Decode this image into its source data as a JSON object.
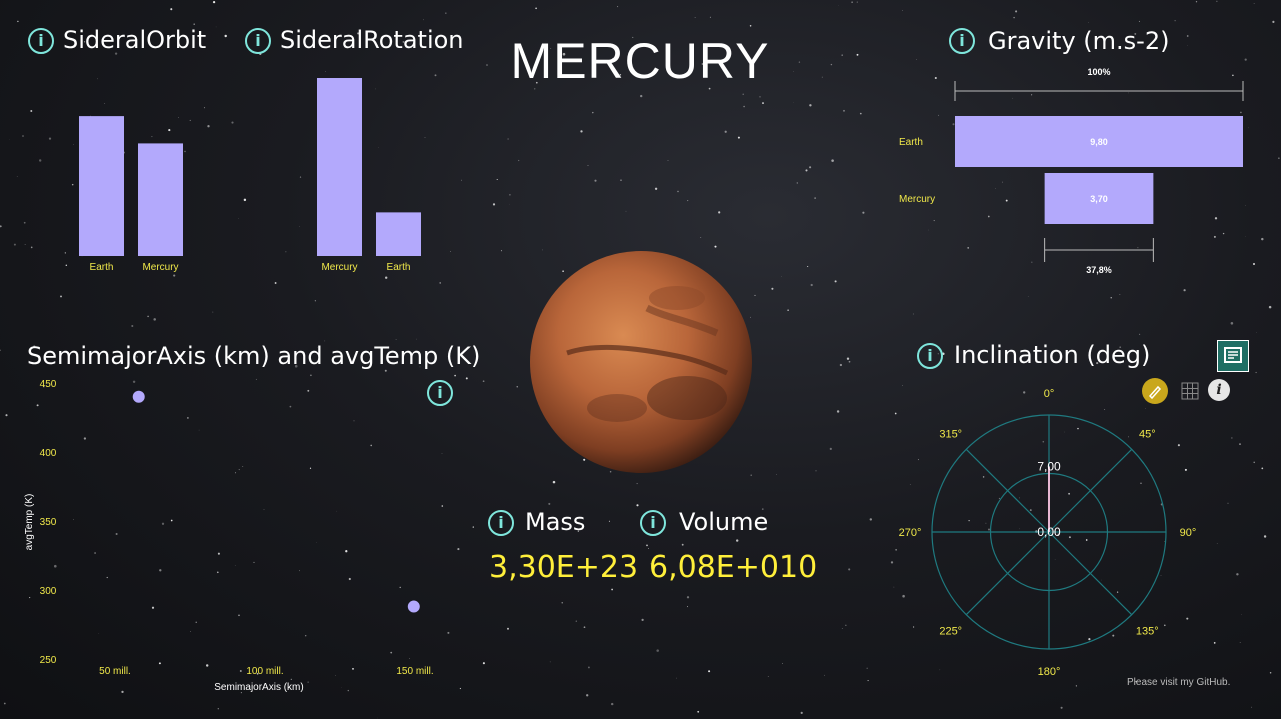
{
  "page_title": "MERCURY",
  "colors": {
    "bar": "#b3a9fc",
    "label_yellow": "#f0e84a",
    "accent_teal": "#7fe6dc",
    "radar_line": "#1f7a80"
  },
  "info_icon_glyph": "i",
  "footer": "Please visit my GitHub.",
  "kpis": {
    "mass": {
      "label": "Mass",
      "value": "3,30E+23"
    },
    "volume": {
      "label": "Volume",
      "value": "6,08E+010"
    }
  },
  "chart_data": [
    {
      "type": "bar",
      "title": "SideralOrbit",
      "categories": [
        "Earth",
        "Mercury"
      ],
      "values": [
        365.26,
        294
      ],
      "ylim": [
        0,
        470
      ]
    },
    {
      "type": "bar",
      "title": "SideralRotation",
      "categories": [
        "Mercury",
        "Earth"
      ],
      "values": [
        1407.6,
        345
      ],
      "ylim": [
        0,
        1550
      ]
    },
    {
      "type": "bar",
      "title": "Gravity (m.s-2)",
      "orientation": "horizontal",
      "categories": [
        "Earth",
        "Mercury"
      ],
      "values": [
        9.8,
        3.7
      ],
      "data_labels": [
        "9,80",
        "3,70"
      ],
      "top_annotation": "100%",
      "bottom_annotation": "37,8%"
    },
    {
      "type": "scatter",
      "title": "SemimajorAxis (km) and avgTemp (K)",
      "xlabel": "SemimajorAxis (km)",
      "ylabel": "avgTemp (K)",
      "xlim": [
        35000000,
        165000000
      ],
      "ylim": [
        250,
        450
      ],
      "xticks": [
        50000000,
        100000000,
        150000000
      ],
      "xtick_labels": [
        "50 mill.",
        "100 mill.",
        "150 mill."
      ],
      "yticks": [
        450,
        400,
        350,
        300,
        250
      ],
      "points": [
        {
          "x": 57909227,
          "y": 440
        },
        {
          "x": 149598023,
          "y": 288
        }
      ]
    },
    {
      "type": "radar",
      "title": "Inclination (deg)",
      "angle_labels": [
        "0°",
        "45°",
        "90°",
        "135°",
        "180°",
        "225°",
        "270°",
        "315°"
      ],
      "rlim": [
        0,
        7
      ],
      "ring_labels": [
        "7,00",
        "0,00"
      ],
      "points": [
        {
          "angle": 0,
          "r": 7.0
        }
      ]
    }
  ]
}
